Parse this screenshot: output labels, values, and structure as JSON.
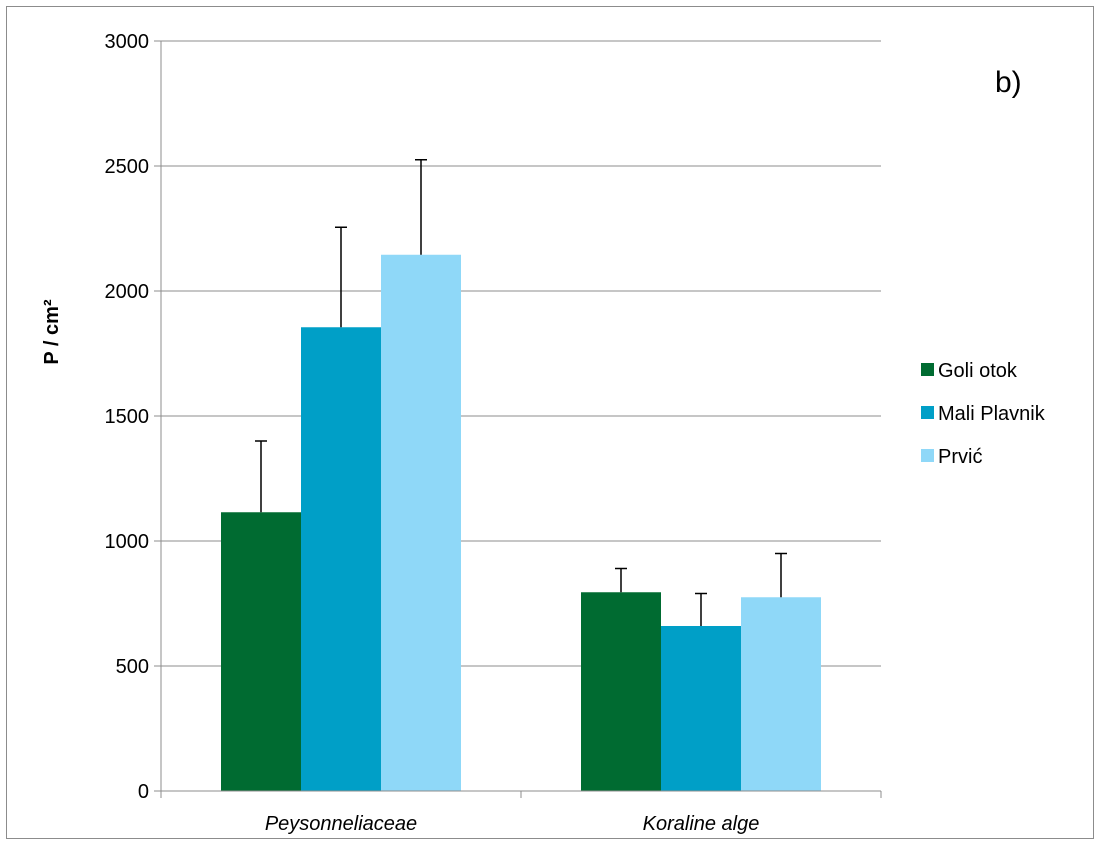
{
  "chart_data": {
    "type": "bar",
    "panel_label": "b)",
    "ylabel": "P / cm²",
    "ylim": [
      0,
      3000
    ],
    "yticks": [
      0,
      500,
      1000,
      1500,
      2000,
      2500,
      3000
    ],
    "categories": [
      "Peysonneliaceae",
      "Koraline alge"
    ],
    "series": [
      {
        "name": "Goli otok",
        "color": "#006b31",
        "values": [
          1115,
          795
        ],
        "errors": [
          285,
          95
        ]
      },
      {
        "name": "Mali Plavnik",
        "color": "#009fc7",
        "values": [
          1855,
          660
        ],
        "errors": [
          400,
          130
        ]
      },
      {
        "name": "Prvić",
        "color": "#8fd8f8",
        "values": [
          2145,
          775
        ],
        "errors": [
          380,
          175
        ]
      }
    ],
    "grid": true,
    "legend_position": "right"
  }
}
